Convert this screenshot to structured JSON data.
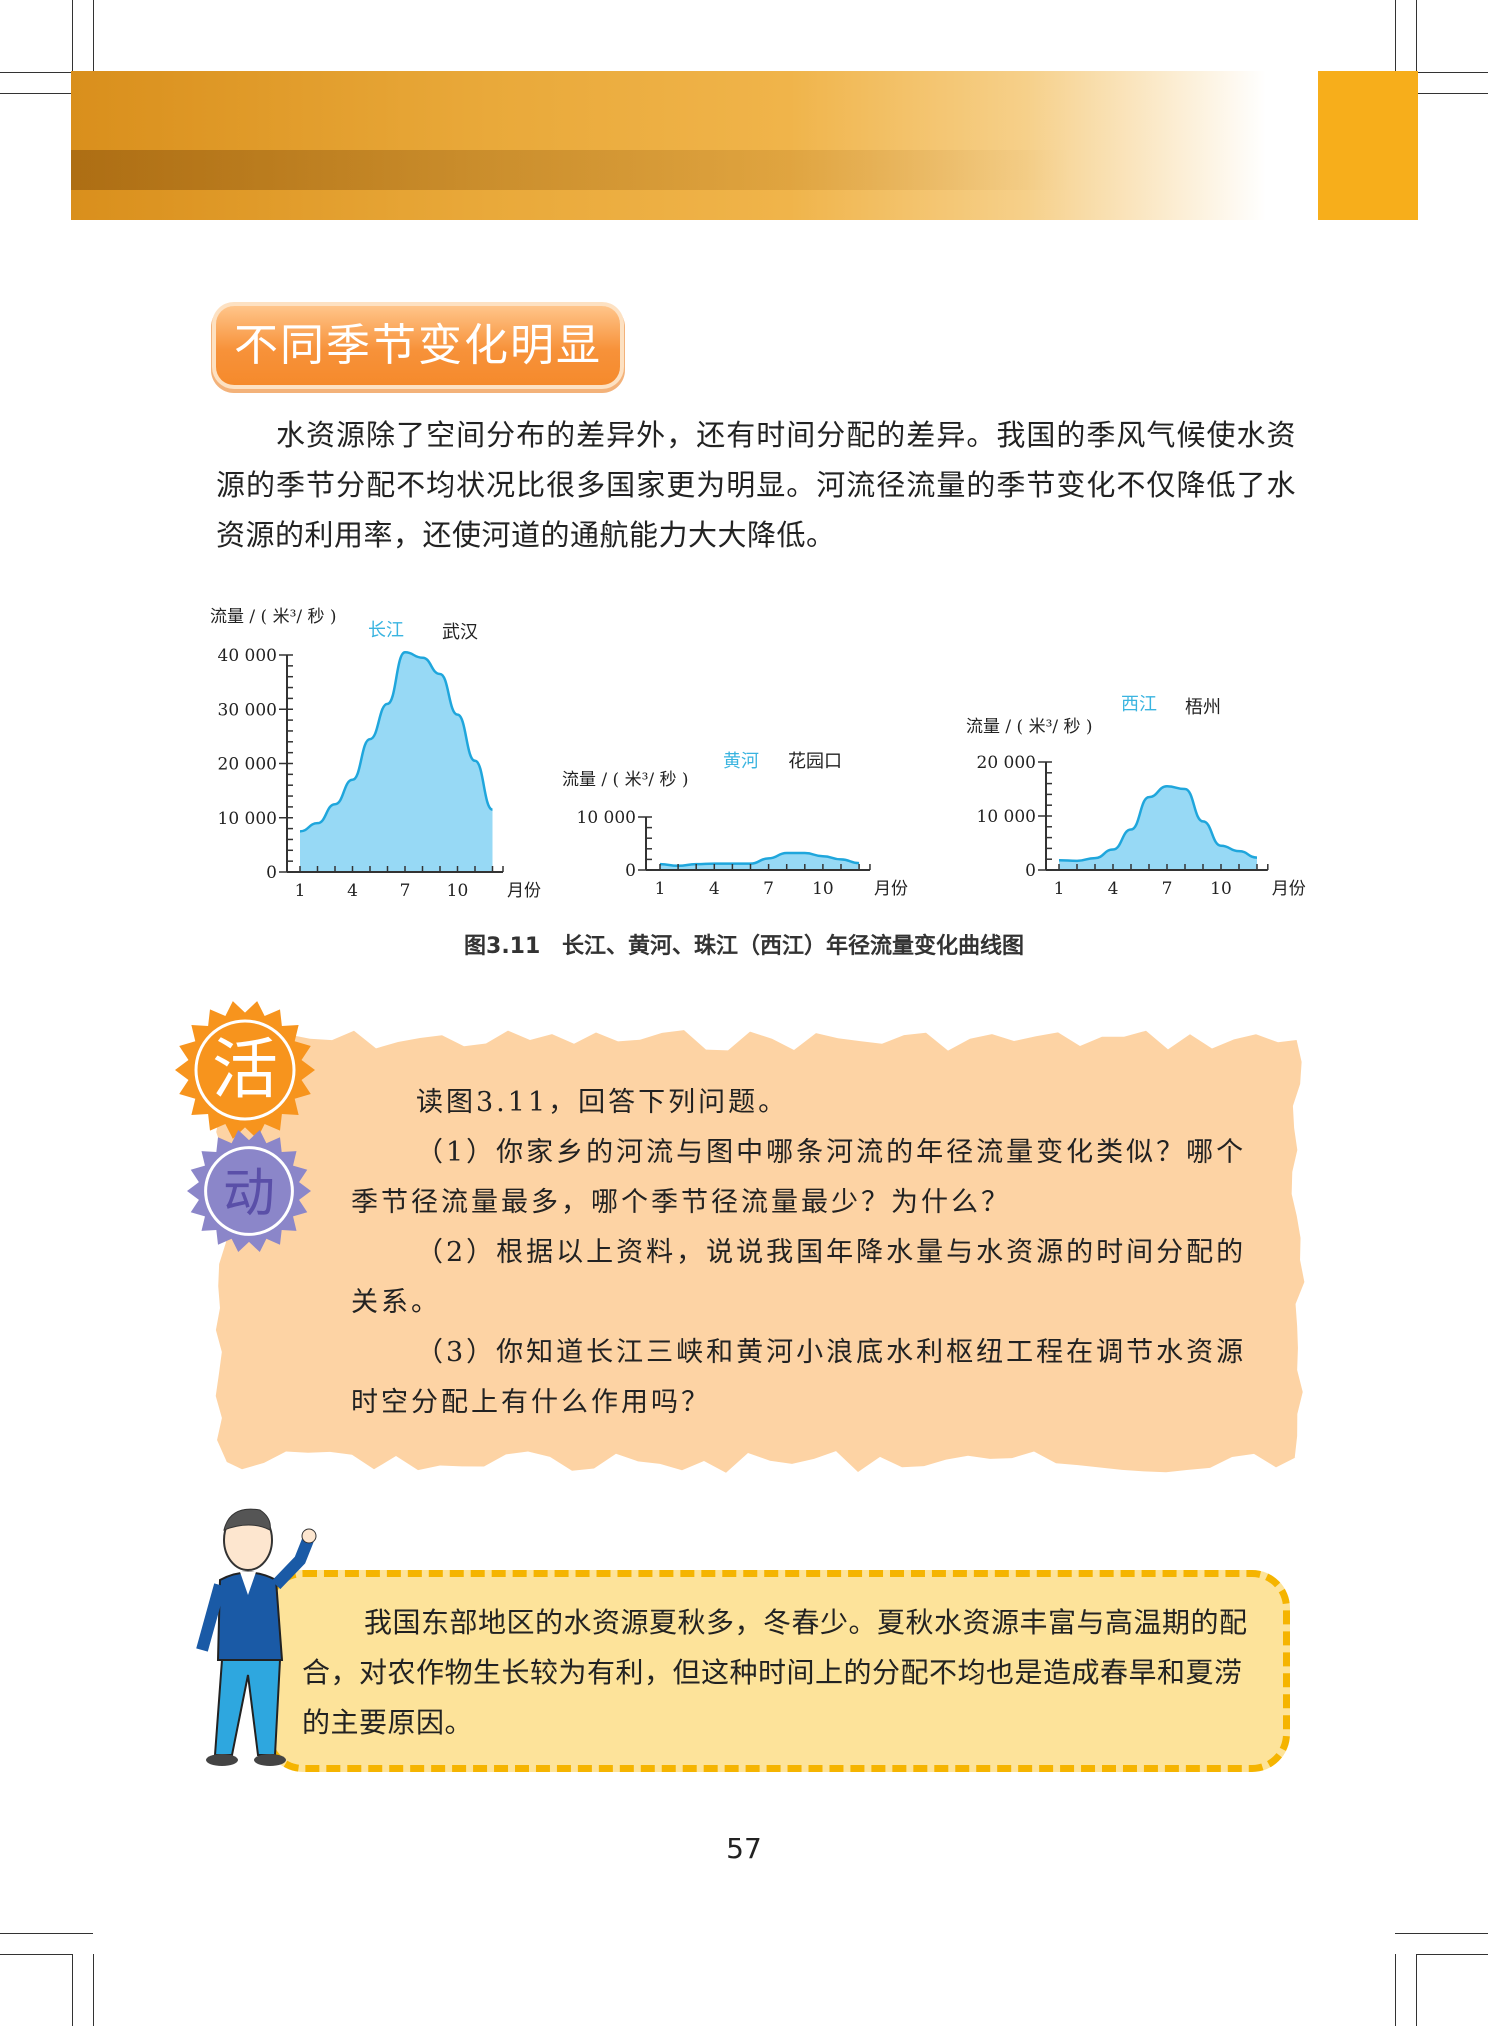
{
  "section_title": "不同季节变化明显",
  "paragraph": "水资源除了空间分布的差异外，还有时间分配的差异。我国的季风气候使水资源的季节分配不均状况比很多国家更为明显。河流径流量的季节变化不仅降低了水资源的利用率，还使河道的通航能力大大降低。",
  "figure_caption": "图3.11  长江、黄河、珠江（西江）年径流量变化曲线图",
  "colors": {
    "banner": "#e9a93a",
    "accent_orange": "#f7ae1b",
    "chart_fill": "#97d9f5",
    "chart_line": "#1fa6dc",
    "river_label": "#3ab4e0",
    "activity_bg": "#fdd3a4",
    "tip_bg": "#fde39a",
    "tip_border": "#f5b400"
  },
  "chart_data": [
    {
      "type": "area",
      "ylabel": "流量 / ( 米³/ 秒 )",
      "xlabel": "月份",
      "river": "长江",
      "station": "武汉",
      "x": [
        1,
        2,
        3,
        4,
        5,
        6,
        7,
        8,
        9,
        10,
        11,
        12
      ],
      "xticks": [
        "1",
        "4",
        "7",
        "10"
      ],
      "yticks": [
        "0",
        "10 000",
        "20 000",
        "30 000",
        "40 000"
      ],
      "ylim": [
        0,
        40000
      ],
      "values": [
        7500,
        9000,
        12500,
        17000,
        24500,
        31000,
        40500,
        39500,
        36500,
        29000,
        20500,
        11500
      ]
    },
    {
      "type": "area",
      "ylabel": "流量 / ( 米³/ 秒 )",
      "xlabel": "月份",
      "river": "黄河",
      "station": "花园口",
      "x": [
        1,
        2,
        3,
        4,
        5,
        6,
        7,
        8,
        9,
        10,
        11,
        12
      ],
      "xticks": [
        "1",
        "4",
        "7",
        "10"
      ],
      "yticks": [
        "0",
        "10 000"
      ],
      "ylim": [
        0,
        10000
      ],
      "values": [
        1100,
        800,
        1100,
        1200,
        1200,
        1200,
        2200,
        3200,
        3200,
        2600,
        2000,
        1300
      ]
    },
    {
      "type": "area",
      "ylabel": "流量 / ( 米³/ 秒 )",
      "xlabel": "月份",
      "river": "西江",
      "station": "梧州",
      "x": [
        1,
        2,
        3,
        4,
        5,
        6,
        7,
        8,
        9,
        10,
        11,
        12
      ],
      "xticks": [
        "1",
        "4",
        "7",
        "10"
      ],
      "yticks": [
        "0",
        "10 000",
        "20 000"
      ],
      "ylim": [
        0,
        20000
      ],
      "values": [
        1800,
        1700,
        2200,
        3800,
        7500,
        13500,
        15500,
        15000,
        9000,
        4500,
        3500,
        2300
      ]
    }
  ],
  "activity": {
    "badge_chars": [
      "活",
      "动"
    ],
    "intro": "读图3.11，回答下列问题。",
    "questions": [
      "（1）你家乡的河流与图中哪条河流的年径流量变化类似？哪个季节径流量最多，哪个季节径流量最少？为什么？",
      "（2）根据以上资料，说说我国年降水量与水资源的时间分配的关系。",
      "（3）你知道长江三峡和黄河小浪底水利枢纽工程在调节水资源时空分配上有什么作用吗？"
    ]
  },
  "tip": "我国东部地区的水资源夏秋多，冬春少。夏秋水资源丰富与高温期的配合，对农作物生长较为有利，但这种时间上的分配不均也是造成春旱和夏涝的主要原因。",
  "page_number": "57"
}
